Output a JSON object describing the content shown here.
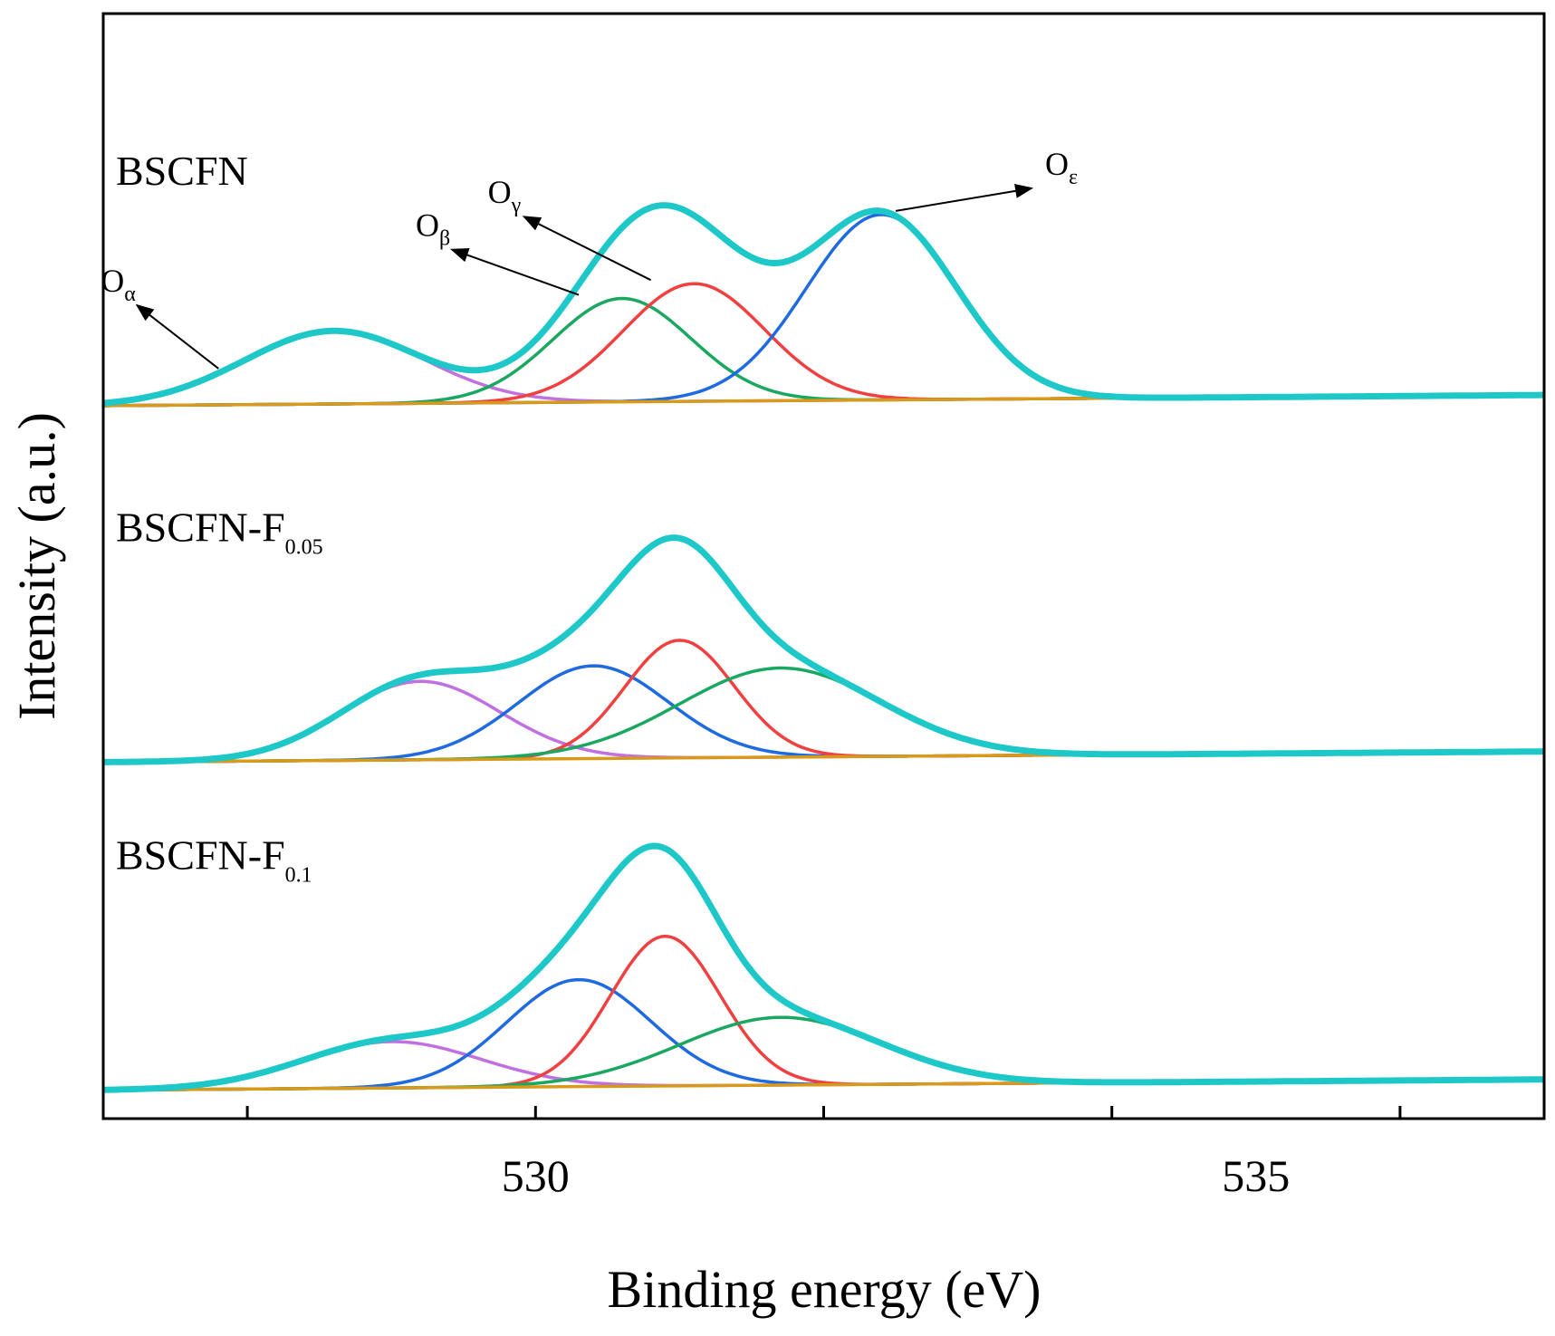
{
  "chart_data": {
    "type": "line",
    "title": "",
    "xlabel": "Binding energy (eV)",
    "ylabel": "Intensity (a.u.)",
    "xlim": [
      527,
      537
    ],
    "ylim": [
      0,
      3.1
    ],
    "grid": false,
    "x_ticks": [
      528,
      530,
      532,
      534,
      536
    ],
    "x_tick_labels": [
      {
        "value": 530,
        "label": "530"
      },
      {
        "value": 535,
        "label": "535"
      }
    ],
    "colors": {
      "envelope": "#1ec8c8",
      "background": "#d89a1a",
      "O_alpha": "#c070e0",
      "O_beta": "#1aa860",
      "O_gamma": "#f04040",
      "O_epsilon": "#1e6ae0",
      "axis": "#000000",
      "arrow": "#000000"
    },
    "panels": [
      {
        "name": "BSCFN",
        "label_main": "BSCFN",
        "label_sub": "",
        "baseline": 2.0,
        "background_rise": 0.03,
        "peaks": [
          {
            "key": "O_alpha",
            "center": 528.6,
            "height": 0.205,
            "sigma": 0.62
          },
          {
            "key": "O_beta",
            "center": 530.6,
            "height": 0.29,
            "sigma": 0.48
          },
          {
            "key": "O_gamma",
            "center": 531.1,
            "height": 0.33,
            "sigma": 0.49
          },
          {
            "key": "O_epsilon",
            "center": 532.4,
            "height": 0.52,
            "sigma": 0.52
          }
        ]
      },
      {
        "name": "BSCFN-F0.05",
        "label_main": "BSCFN-F",
        "label_sub": "0.05",
        "baseline": 1.0,
        "background_rise": 0.03,
        "peaks": [
          {
            "key": "O_alpha",
            "center": 529.2,
            "height": 0.22,
            "sigma": 0.55
          },
          {
            "key": "O_epsilon",
            "center": 530.4,
            "height": 0.26,
            "sigma": 0.52
          },
          {
            "key": "O_gamma",
            "center": 531.0,
            "height": 0.33,
            "sigma": 0.38
          },
          {
            "key": "O_beta",
            "center": 531.7,
            "height": 0.25,
            "sigma": 0.7
          }
        ]
      },
      {
        "name": "BSCFN-F0.1",
        "label_main": "BSCFN-F",
        "label_sub": "0.1",
        "baseline": 0.08,
        "background_rise": 0.03,
        "peaks": [
          {
            "key": "O_alpha",
            "center": 529.0,
            "height": 0.13,
            "sigma": 0.62
          },
          {
            "key": "O_epsilon",
            "center": 530.3,
            "height": 0.3,
            "sigma": 0.5
          },
          {
            "key": "O_gamma",
            "center": 530.9,
            "height": 0.42,
            "sigma": 0.38
          },
          {
            "key": "O_beta",
            "center": 531.7,
            "height": 0.19,
            "sigma": 0.7
          }
        ]
      }
    ],
    "annotations": [
      {
        "main": "O",
        "sub": "α",
        "target": "O_alpha"
      },
      {
        "main": "O",
        "sub": "β",
        "target": "O_beta"
      },
      {
        "main": "O",
        "sub": "γ",
        "target": "O_gamma"
      },
      {
        "main": "O",
        "sub": "ε",
        "target": "O_epsilon"
      }
    ]
  }
}
